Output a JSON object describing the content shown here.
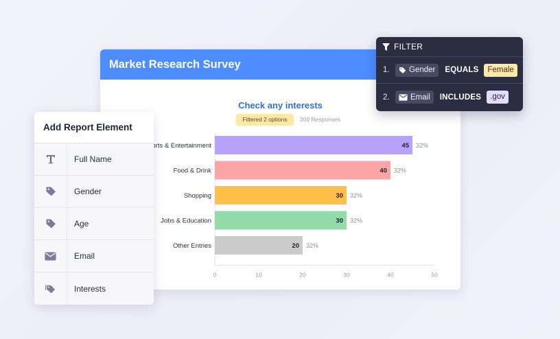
{
  "report": {
    "title": "Market Research Survey",
    "filtered_badge": "Filtered 2 options",
    "responses": "200 Responses"
  },
  "chart_data": {
    "type": "bar",
    "orientation": "horizontal",
    "title": "Check any interests",
    "categories": [
      "Sports & Entertainment",
      "Food & Drink",
      "Shopping",
      "Jobs & Education",
      "Other Entries"
    ],
    "values": [
      45,
      40,
      30,
      30,
      20
    ],
    "percent_labels": [
      "32%",
      "32%",
      "32%",
      "32%",
      "32%"
    ],
    "colors": [
      "#b8a3fb",
      "#fca5a7",
      "#fdc04a",
      "#92dca9",
      "#cbcbcb"
    ],
    "xlim": [
      0,
      50
    ],
    "xticks": [
      0,
      10,
      20,
      30,
      40,
      50
    ],
    "xlabel": "",
    "ylabel": "",
    "grid": false
  },
  "sidebar": {
    "title": "Add Report Element",
    "items": [
      {
        "label": "Full Name",
        "icon": "text-icon"
      },
      {
        "label": "Gender",
        "icon": "tag-icon"
      },
      {
        "label": "Age",
        "icon": "tag-icon"
      },
      {
        "label": "Email",
        "icon": "envelope-icon"
      },
      {
        "label": "Interests",
        "icon": "tags-icon"
      }
    ]
  },
  "filter": {
    "title": "FILTER",
    "rows": [
      {
        "num": "1.",
        "field": "Gender",
        "field_icon": "tag-icon",
        "op": "EQUALS",
        "value": "Female"
      },
      {
        "num": "2.",
        "field": "Email",
        "field_icon": "envelope-icon",
        "op": "INCLUDES",
        "value": ".gov"
      }
    ]
  }
}
